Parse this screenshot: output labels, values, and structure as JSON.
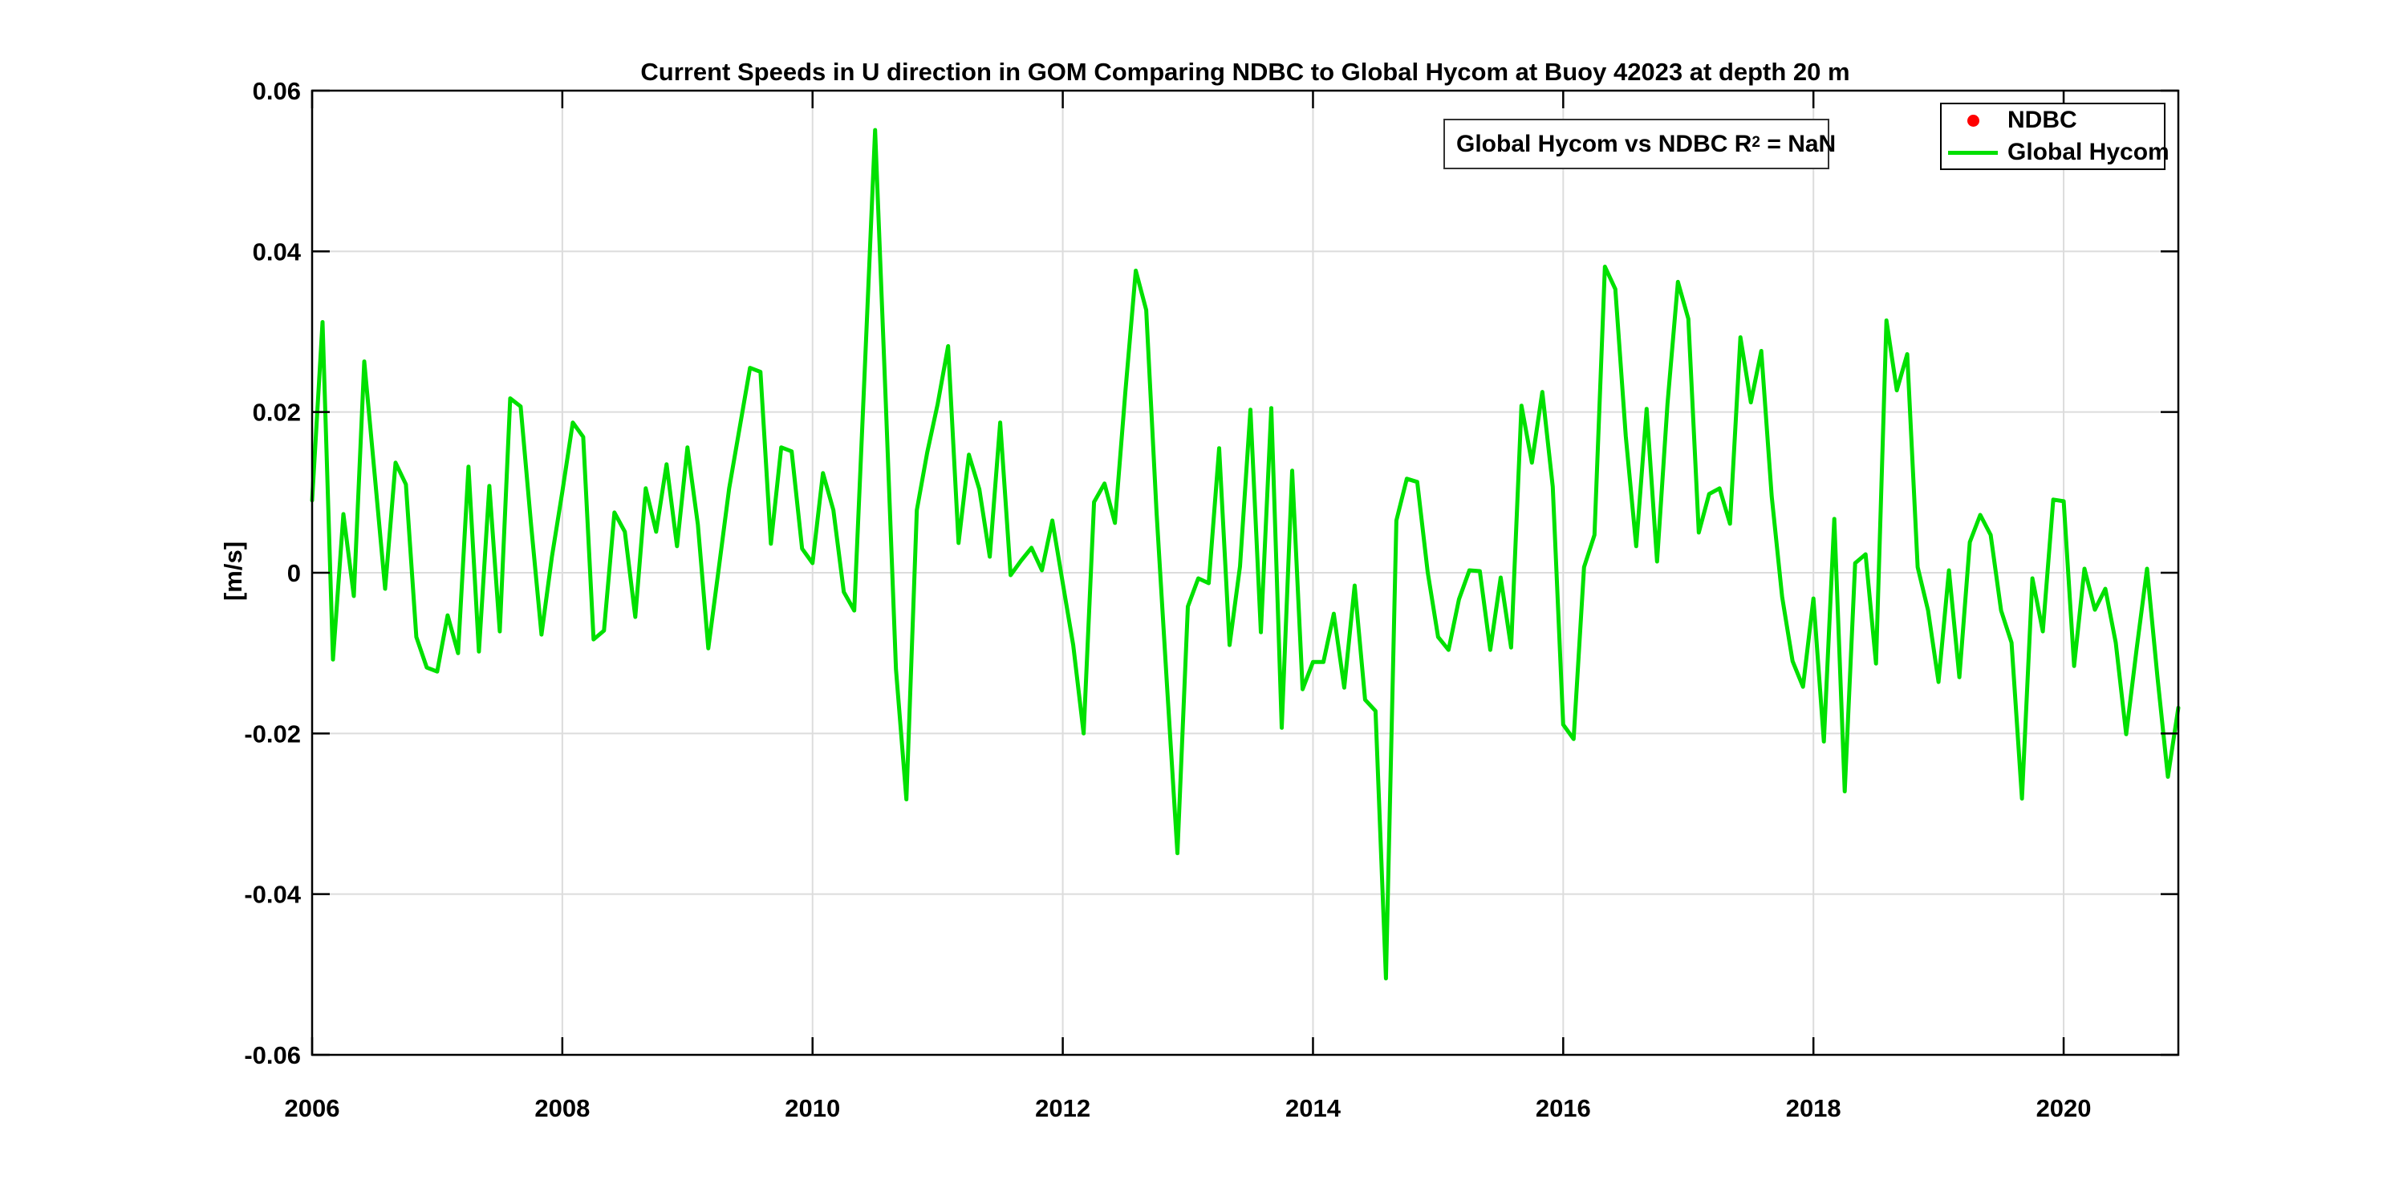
{
  "figure": {
    "background": "#ffffff",
    "axes_color": "#000000",
    "grid_color": "#dcdcdc"
  },
  "annotation": {
    "prefix": "Global Hycom vs NDBC R",
    "sup": "2",
    "suffix": " = NaN"
  },
  "legend": {
    "position": "top-right",
    "items": [
      {
        "label": "NDBC",
        "marker": "red-dot",
        "color": "#ff0000"
      },
      {
        "label": "Global Hycom",
        "marker": "green-line",
        "color": "#00e000"
      }
    ]
  },
  "chart_data": {
    "type": "line",
    "title": "Current Speeds in U direction in GOM Comparing NDBC to Global Hycom at Buoy  42023  at depth  20 m",
    "xlabel": "",
    "ylabel": "[m/s]",
    "xlim": [
      2006,
      2020.9167
    ],
    "ylim": [
      -0.06,
      0.06
    ],
    "grid": true,
    "legend_position": "top-right",
    "xticks": [
      2006,
      2008,
      2010,
      2012,
      2014,
      2016,
      2018,
      2020
    ],
    "yticks": [
      0.06,
      0.04,
      0.02,
      0,
      -0.02,
      -0.04,
      -0.06
    ],
    "ytick_labels": [
      "0.06",
      "0.04",
      "0.02",
      "0",
      "-0.02",
      "-0.04",
      "-0.06"
    ],
    "series": [
      {
        "name": "NDBC",
        "type": "scatter",
        "marker": "dot",
        "color": "#ff0000",
        "values": []
      },
      {
        "name": "Global Hycom",
        "type": "line",
        "color": "#00e000",
        "line_width": 5,
        "start_year": 2006,
        "interval": "monthly",
        "values": [
          0.009,
          0.0312,
          -0.0108,
          0.0073,
          -0.0029,
          0.0263,
          0.0122,
          -0.002,
          0.0137,
          0.011,
          -0.008,
          -0.0118,
          -0.0123,
          -0.0053,
          -0.01,
          0.0132,
          -0.0098,
          0.0108,
          -0.0073,
          0.0217,
          0.0207,
          0.006,
          -0.0077,
          0.002,
          0.0101,
          0.0187,
          0.0169,
          -0.0083,
          -0.0072,
          0.0075,
          0.0051,
          -0.0055,
          0.0105,
          0.0051,
          0.0135,
          0.0033,
          0.0156,
          0.006,
          -0.0094,
          0.0005,
          0.0105,
          0.018,
          0.0255,
          0.025,
          0.0036,
          0.0156,
          0.0151,
          0.003,
          0.0012,
          0.0124,
          0.0078,
          -0.0024,
          -0.0047,
          0.025,
          0.0551,
          0.022,
          -0.012,
          -0.0282,
          0.0078,
          0.015,
          0.021,
          0.0282,
          0.0037,
          0.0147,
          0.0104,
          0.002,
          0.0187,
          -0.0003,
          0.0015,
          0.0031,
          0.0003,
          0.0065,
          -0.0013,
          -0.009,
          -0.02,
          0.0088,
          0.0111,
          0.0062,
          0.0225,
          0.0376,
          0.0327,
          0.0075,
          -0.014,
          -0.0349,
          -0.0042,
          -0.0007,
          -0.0013,
          0.0155,
          -0.009,
          0.0008,
          0.0203,
          -0.0074,
          0.0205,
          -0.0193,
          0.0127,
          -0.0145,
          -0.0111,
          -0.0111,
          -0.0051,
          -0.0143,
          -0.0016,
          -0.0158,
          -0.0172,
          -0.0505,
          0.0065,
          0.0117,
          0.0113,
          0.0001,
          -0.008,
          -0.0096,
          -0.0033,
          0.0003,
          0.0002,
          -0.0096,
          -0.0006,
          -0.0093,
          0.0208,
          0.0137,
          0.0225,
          0.0107,
          -0.0189,
          -0.0207,
          0.0007,
          0.0047,
          0.0381,
          0.0353,
          0.017,
          0.0033,
          0.0204,
          0.0014,
          0.021,
          0.0362,
          0.0316,
          0.005,
          0.0098,
          0.0105,
          0.0061,
          0.0293,
          0.0212,
          0.0276,
          0.0095,
          -0.003,
          -0.011,
          -0.0142,
          -0.0032,
          -0.021,
          0.0067,
          -0.0272,
          0.0012,
          0.0023,
          -0.0113,
          0.0314,
          0.0227,
          0.0272,
          0.0007,
          -0.0047,
          -0.0136,
          0.0003,
          -0.013,
          0.0038,
          0.0072,
          0.0047,
          -0.0047,
          -0.0087,
          -0.0281,
          -0.0007,
          -0.0073,
          0.0091,
          0.0089,
          -0.0116,
          0.0005,
          -0.0046,
          -0.002,
          -0.0087,
          -0.0201,
          -0.0095,
          0.0005,
          -0.013,
          -0.0254,
          -0.0168
        ]
      }
    ]
  }
}
